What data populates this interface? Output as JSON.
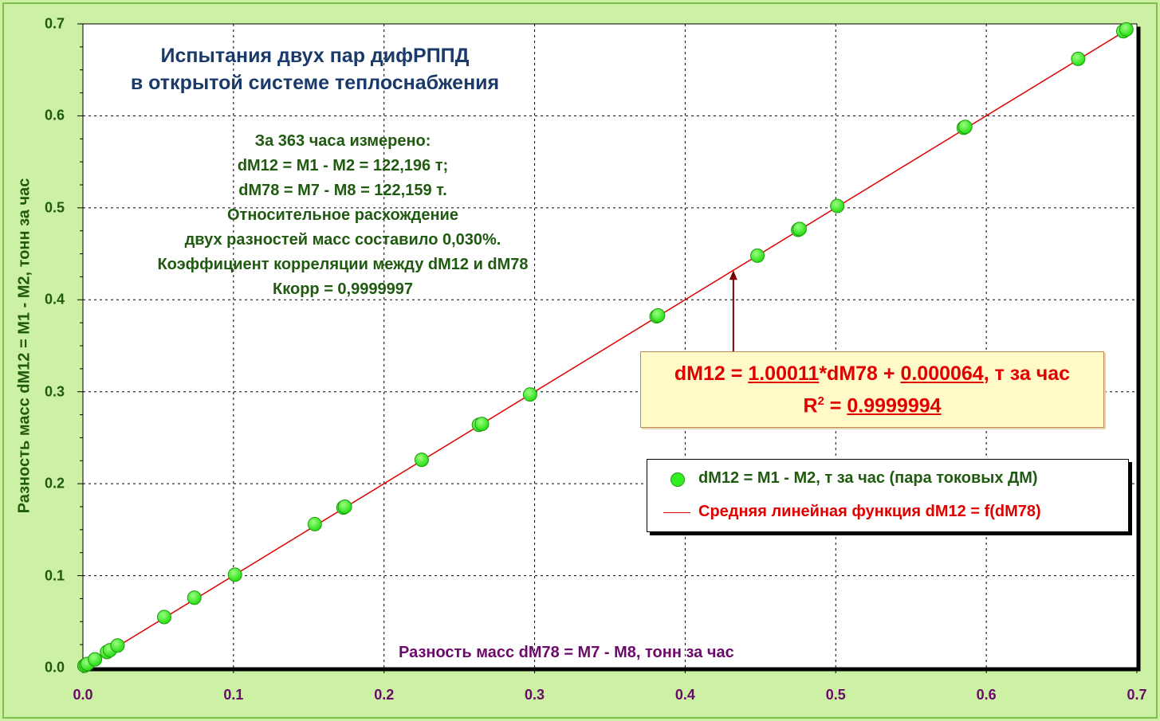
{
  "title": {
    "line1": "Испытания двух пар дифРППД",
    "line2": "в открытой системе теплоснабжения"
  },
  "notes": [
    "За 363 часа измерено:",
    "dM12 = M1 - M2 = 122,196 т;",
    "dM78 = M7 - M8 = 122,159 т.",
    "Относительное расхождение",
    "двух разностей масс составило 0,030%.",
    "Коэффициент корреляции между dM12 и dM78",
    "Ккорр = 0,9999997"
  ],
  "equation": {
    "prefix": "dM12 = ",
    "slope": "1.00011",
    "mid": "*dM78 + ",
    "intercept": "0.000064",
    "suffix": ", т за час",
    "r2_label": "R",
    "r2_sup": "2",
    "r2_eq": " = ",
    "r2_value": "0.9999994"
  },
  "legend": {
    "series1": "dM12 = M1 - M2, т за час (пара токовых ДМ)",
    "series2": "Средняя линейная функция dM12 = f(dM78)"
  },
  "colors": {
    "background": "#ccf0a4",
    "plot_area": "#ffffff",
    "marker": "#33ee22",
    "marker_edge": "#229911",
    "fit_line": "#e00000",
    "arrow": "#7a0000",
    "title": "#1a3a6a",
    "notes": "#1f5a10",
    "x_text": "#6a0a6a",
    "y_text": "#1f5a10"
  },
  "chart_data": {
    "type": "scatter",
    "xlabel": "Разность масс dM78 = M7 - M8, тонн за час",
    "ylabel": "Разность масс dM12 = M1 - M2, тонн за час",
    "xlim": [
      0,
      0.7
    ],
    "ylim": [
      0,
      0.7
    ],
    "x_ticks": [
      "0.0",
      "0.1",
      "0.2",
      "0.3",
      "0.4",
      "0.5",
      "0.6",
      "0.7"
    ],
    "y_ticks": [
      "0.0",
      "0.1",
      "0.2",
      "0.3",
      "0.4",
      "0.5",
      "0.6",
      "0.7"
    ],
    "grid": "dashed",
    "legend_position": "bottom-right",
    "series": [
      {
        "name": "dM12 = M1 - M2, т за час (пара токовых ДМ)",
        "kind": "scatter",
        "points": [
          [
            0.001,
            0.002
          ],
          [
            0.002,
            0.003
          ],
          [
            0.003,
            0.004
          ],
          [
            0.008,
            0.009
          ],
          [
            0.016,
            0.017
          ],
          [
            0.018,
            0.019
          ],
          [
            0.023,
            0.024
          ],
          [
            0.054,
            0.055
          ],
          [
            0.074,
            0.076
          ],
          [
            0.101,
            0.101
          ],
          [
            0.154,
            0.156
          ],
          [
            0.173,
            0.174
          ],
          [
            0.174,
            0.175
          ],
          [
            0.225,
            0.226
          ],
          [
            0.263,
            0.264
          ],
          [
            0.265,
            0.265
          ],
          [
            0.297,
            0.297
          ],
          [
            0.381,
            0.382
          ],
          [
            0.382,
            0.383
          ],
          [
            0.448,
            0.448
          ],
          [
            0.475,
            0.476
          ],
          [
            0.476,
            0.477
          ],
          [
            0.501,
            0.502
          ],
          [
            0.585,
            0.587
          ],
          [
            0.586,
            0.588
          ],
          [
            0.661,
            0.662
          ],
          [
            0.691,
            0.692
          ],
          [
            0.693,
            0.694
          ]
        ]
      },
      {
        "name": "Средняя линейная функция dM12 = f(dM78)",
        "kind": "line",
        "slope": 1.00011,
        "intercept": 6.4e-05,
        "x_range": [
          0,
          0.693
        ]
      }
    ],
    "annotation_arrow_target": [
      0.432,
      0.4321
    ]
  }
}
